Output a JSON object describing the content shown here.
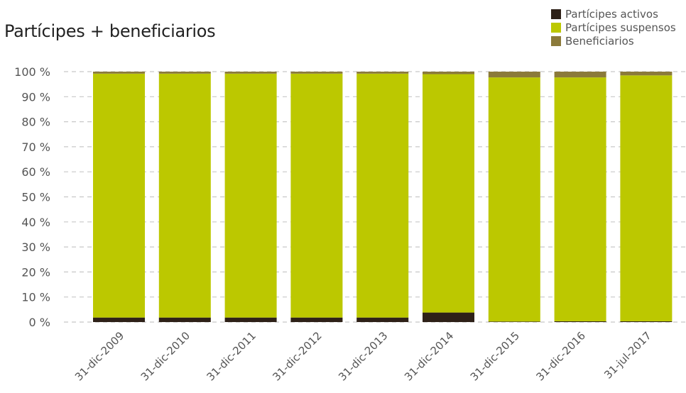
{
  "chart_data": {
    "type": "bar",
    "stacked": true,
    "title": "Partícipes + beneficiarios",
    "xlabel": "",
    "ylabel": "",
    "ylim": [
      0,
      100
    ],
    "y_ticks": [
      "0 %",
      "10 %",
      "20 %",
      "30 %",
      "40 %",
      "50 %",
      "60 %",
      "70 %",
      "80 %",
      "90 %",
      "100 %"
    ],
    "y_tick_values": [
      0,
      10,
      20,
      30,
      40,
      50,
      60,
      70,
      80,
      90,
      100
    ],
    "grid": true,
    "legend_position": "top-right",
    "categories": [
      "31-dic-2009",
      "31-dic-2010",
      "31-dic-2011",
      "31-dic-2012",
      "31-dic-2013",
      "31-dic-2014",
      "31-dic-2015",
      "31-dic-2016",
      "31-jul-2017"
    ],
    "series": [
      {
        "name": "Partícipes activos",
        "color": "#2e2118",
        "values": [
          1.8,
          1.8,
          1.8,
          1.8,
          1.8,
          3.8,
          0.2,
          0.3,
          0.3
        ]
      },
      {
        "name": "Partícipes suspensos",
        "color": "#bcc800",
        "values": [
          97.4,
          97.4,
          97.4,
          97.4,
          97.4,
          95.2,
          97.5,
          97.4,
          98.2
        ]
      },
      {
        "name": "Beneficiarios",
        "color": "#8b7a3a",
        "values": [
          0.8,
          0.8,
          0.8,
          0.8,
          0.8,
          1.0,
          2.3,
          2.3,
          1.5
        ]
      }
    ]
  }
}
